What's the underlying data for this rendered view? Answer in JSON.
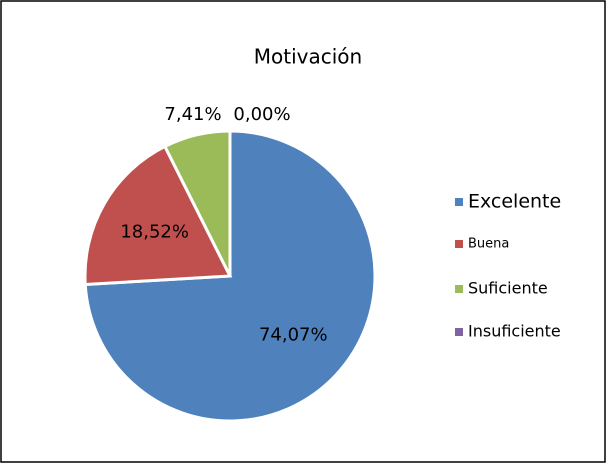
{
  "chart_data": {
    "type": "pie",
    "title": "Motivación",
    "categories": [
      "Excelente",
      "Buena",
      "Suficiente",
      "Insuficiente"
    ],
    "values": [
      74.07,
      18.52,
      7.41,
      0.0
    ],
    "value_labels": [
      "74,07%",
      "18,52%",
      "7,41%",
      "0,00%"
    ],
    "colors": [
      "#4f81bd",
      "#c0504d",
      "#9bbb59",
      "#8064a2"
    ],
    "legend": "right"
  }
}
